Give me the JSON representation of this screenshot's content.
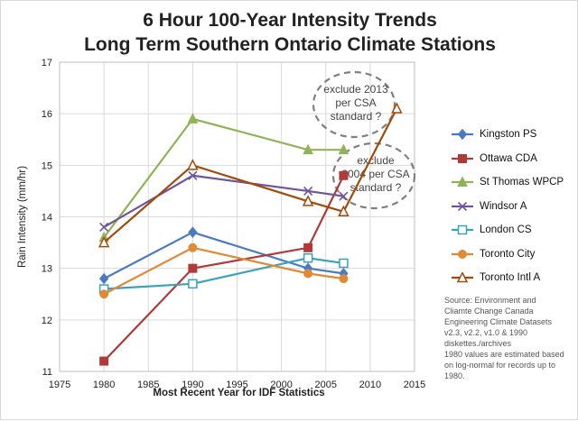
{
  "chart_data": {
    "type": "line",
    "title": [
      "6 Hour 100-Year Intensity Trends",
      "Long Term Southern Ontario Climate Stations"
    ],
    "xlabel": "Most Recent Year for IDF Statistics",
    "ylabel": "Rain Intensity (mm/hr)",
    "xlim": [
      1975,
      2015
    ],
    "ylim": [
      11,
      17
    ],
    "xticks": [
      1975,
      1980,
      1985,
      1990,
      1995,
      2000,
      2005,
      2010,
      2015
    ],
    "yticks": [
      11,
      12,
      13,
      14,
      15,
      16,
      17
    ],
    "series": [
      {
        "name": "Kingston PS",
        "color": "#4a7bc0",
        "marker": "diamond",
        "x": [
          1980,
          1990,
          2003,
          2007
        ],
        "y": [
          12.8,
          13.7,
          13.0,
          12.9
        ]
      },
      {
        "name": "Ottawa CDA",
        "color": "#b03a38",
        "marker": "square",
        "x": [
          1980,
          1990,
          2003,
          2007
        ],
        "y": [
          11.2,
          13.0,
          13.4,
          14.8
        ]
      },
      {
        "name": "St Thomas WPCP",
        "color": "#8eb456",
        "marker": "triangle",
        "x": [
          1980,
          1990,
          2003,
          2007
        ],
        "y": [
          13.6,
          15.9,
          15.3,
          15.3
        ]
      },
      {
        "name": "Windsor A",
        "color": "#6f559a",
        "marker": "x",
        "x": [
          1980,
          1990,
          2003,
          2007
        ],
        "y": [
          13.8,
          14.8,
          14.5,
          14.4
        ]
      },
      {
        "name": "London CS",
        "color": "#3aa2b8",
        "marker": "open-square",
        "x": [
          1980,
          1990,
          2003,
          2007
        ],
        "y": [
          12.6,
          12.7,
          13.2,
          13.1
        ]
      },
      {
        "name": "Toronto City",
        "color": "#e08a36",
        "marker": "circle",
        "x": [
          1980,
          1990,
          2003,
          2007
        ],
        "y": [
          12.5,
          13.4,
          12.9,
          12.8
        ]
      },
      {
        "name": "Toronto Intl A",
        "color": "#a24a09",
        "marker": "open-triangle",
        "x": [
          1980,
          1990,
          2003,
          2007,
          2013
        ],
        "y": [
          13.5,
          15.0,
          14.3,
          14.1,
          16.1
        ]
      }
    ],
    "annotations": [
      {
        "lines": [
          "exclude 2013",
          "per CSA",
          "standard ?"
        ]
      },
      {
        "lines": [
          "exclude",
          "2004 per CSA",
          "standard ?"
        ]
      }
    ],
    "source": [
      "Source: Environment and",
      "Cliamte Change Canada",
      "Engineering Climate Datasets",
      "v2.3, v2.2, v1.0 & 1990",
      "diskettes./archives",
      "1980 values are estimated based",
      "on log-normal for records up to",
      "1980."
    ]
  }
}
